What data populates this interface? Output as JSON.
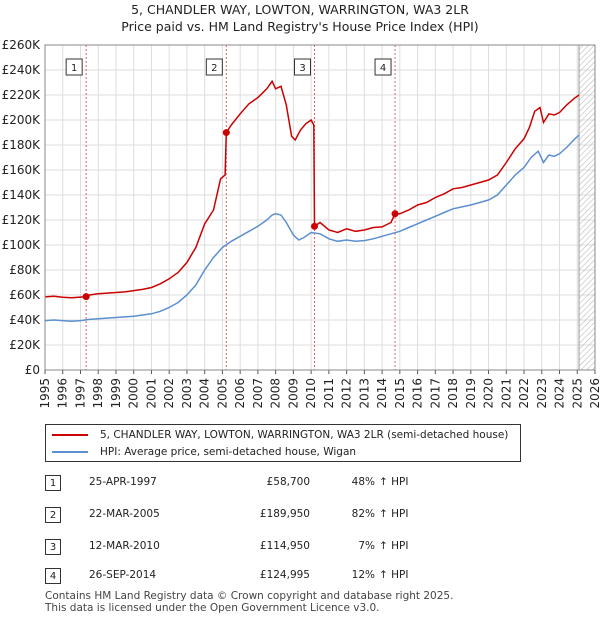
{
  "title": {
    "line1": "5, CHANDLER WAY, LOWTON, WARRINGTON, WA3 2LR",
    "line2": "Price paid vs. HM Land Registry's House Price Index (HPI)"
  },
  "chart_data": {
    "type": "line",
    "ylim": [
      0,
      260000
    ],
    "xlim": [
      1995,
      2026
    ],
    "y_ticks": [
      {
        "value": 0,
        "label": "£0"
      },
      {
        "value": 20000,
        "label": "£20K"
      },
      {
        "value": 40000,
        "label": "£40K"
      },
      {
        "value": 60000,
        "label": "£60K"
      },
      {
        "value": 80000,
        "label": "£80K"
      },
      {
        "value": 100000,
        "label": "£100K"
      },
      {
        "value": 120000,
        "label": "£120K"
      },
      {
        "value": 140000,
        "label": "£140K"
      },
      {
        "value": 160000,
        "label": "£160K"
      },
      {
        "value": 180000,
        "label": "£180K"
      },
      {
        "value": 200000,
        "label": "£200K"
      },
      {
        "value": 220000,
        "label": "£220K"
      },
      {
        "value": 240000,
        "label": "£240K"
      },
      {
        "value": 260000,
        "label": "£260K"
      }
    ],
    "x_ticks": [
      "1995",
      "1996",
      "1997",
      "1998",
      "1999",
      "2000",
      "2001",
      "2002",
      "2003",
      "2004",
      "2005",
      "2006",
      "2007",
      "2008",
      "2009",
      "2010",
      "2011",
      "2012",
      "2013",
      "2014",
      "2015",
      "2016",
      "2017",
      "2018",
      "2019",
      "2020",
      "2021",
      "2022",
      "2023",
      "2024",
      "2025",
      "2026"
    ],
    "forecast_start": 2025.1,
    "series": [
      {
        "name": "5, CHANDLER WAY, LOWTON, WARRINGTON, WA3 2LR (semi-detached house)",
        "color": "#cc0000",
        "points": [
          [
            1995.0,
            58500
          ],
          [
            1995.5,
            59000
          ],
          [
            1996.0,
            58200
          ],
          [
            1996.5,
            57800
          ],
          [
            1997.0,
            58300
          ],
          [
            1997.32,
            58700
          ],
          [
            1997.5,
            60000
          ],
          [
            1998.0,
            61000
          ],
          [
            1998.5,
            61500
          ],
          [
            1999.0,
            62000
          ],
          [
            1999.5,
            62500
          ],
          [
            2000.0,
            63500
          ],
          [
            2000.5,
            64500
          ],
          [
            2001.0,
            66000
          ],
          [
            2001.5,
            69000
          ],
          [
            2002.0,
            73000
          ],
          [
            2002.5,
            78000
          ],
          [
            2003.0,
            86000
          ],
          [
            2003.5,
            98000
          ],
          [
            2004.0,
            117000
          ],
          [
            2004.5,
            128000
          ],
          [
            2004.9,
            153000
          ],
          [
            2005.15,
            156000
          ],
          [
            2005.22,
            189950
          ],
          [
            2005.5,
            196000
          ],
          [
            2006.0,
            205000
          ],
          [
            2006.5,
            213000
          ],
          [
            2007.0,
            218000
          ],
          [
            2007.5,
            225000
          ],
          [
            2007.8,
            231000
          ],
          [
            2008.0,
            225000
          ],
          [
            2008.3,
            227000
          ],
          [
            2008.6,
            212000
          ],
          [
            2008.9,
            187000
          ],
          [
            2009.1,
            184000
          ],
          [
            2009.4,
            192000
          ],
          [
            2009.7,
            197000
          ],
          [
            2010.0,
            200000
          ],
          [
            2010.15,
            196000
          ],
          [
            2010.19,
            114950
          ],
          [
            2010.5,
            118000
          ],
          [
            2011.0,
            112000
          ],
          [
            2011.5,
            110000
          ],
          [
            2012.0,
            113000
          ],
          [
            2012.5,
            111000
          ],
          [
            2013.0,
            112000
          ],
          [
            2013.5,
            114000
          ],
          [
            2014.0,
            114500
          ],
          [
            2014.5,
            118000
          ],
          [
            2014.73,
            124995
          ],
          [
            2015.0,
            125000
          ],
          [
            2015.5,
            128000
          ],
          [
            2016.0,
            132000
          ],
          [
            2016.5,
            134000
          ],
          [
            2017.0,
            138000
          ],
          [
            2017.5,
            141000
          ],
          [
            2018.0,
            145000
          ],
          [
            2018.5,
            146000
          ],
          [
            2019.0,
            148000
          ],
          [
            2019.5,
            150000
          ],
          [
            2020.0,
            152000
          ],
          [
            2020.5,
            156000
          ],
          [
            2021.0,
            166000
          ],
          [
            2021.5,
            177000
          ],
          [
            2022.0,
            185000
          ],
          [
            2022.3,
            194000
          ],
          [
            2022.6,
            207000
          ],
          [
            2022.9,
            210000
          ],
          [
            2023.1,
            198000
          ],
          [
            2023.4,
            205000
          ],
          [
            2023.7,
            204000
          ],
          [
            2024.0,
            206000
          ],
          [
            2024.4,
            212000
          ],
          [
            2024.8,
            217000
          ],
          [
            2025.1,
            220000
          ]
        ]
      },
      {
        "name": "HPI: Average price, semi-detached house, Wigan",
        "color": "#5b8fd0",
        "points": [
          [
            1995.0,
            39500
          ],
          [
            1995.5,
            40000
          ],
          [
            1996.0,
            39500
          ],
          [
            1996.5,
            39000
          ],
          [
            1997.0,
            39500
          ],
          [
            1997.5,
            40500
          ],
          [
            1998.0,
            41000
          ],
          [
            1998.5,
            41500
          ],
          [
            1999.0,
            42000
          ],
          [
            1999.5,
            42500
          ],
          [
            2000.0,
            43000
          ],
          [
            2000.5,
            44000
          ],
          [
            2001.0,
            45000
          ],
          [
            2001.5,
            47000
          ],
          [
            2002.0,
            50000
          ],
          [
            2002.5,
            54000
          ],
          [
            2003.0,
            60000
          ],
          [
            2003.5,
            68000
          ],
          [
            2004.0,
            80000
          ],
          [
            2004.5,
            90000
          ],
          [
            2005.0,
            98000
          ],
          [
            2005.5,
            103000
          ],
          [
            2006.0,
            107000
          ],
          [
            2006.5,
            111000
          ],
          [
            2007.0,
            115000
          ],
          [
            2007.5,
            120000
          ],
          [
            2007.8,
            124000
          ],
          [
            2008.0,
            125000
          ],
          [
            2008.3,
            124000
          ],
          [
            2008.6,
            118000
          ],
          [
            2009.0,
            108000
          ],
          [
            2009.3,
            104000
          ],
          [
            2009.6,
            106000
          ],
          [
            2010.0,
            110000
          ],
          [
            2010.5,
            109000
          ],
          [
            2011.0,
            105000
          ],
          [
            2011.5,
            103000
          ],
          [
            2012.0,
            104000
          ],
          [
            2012.5,
            103000
          ],
          [
            2013.0,
            103500
          ],
          [
            2013.5,
            105000
          ],
          [
            2014.0,
            107000
          ],
          [
            2014.5,
            109000
          ],
          [
            2015.0,
            111000
          ],
          [
            2015.5,
            114000
          ],
          [
            2016.0,
            117000
          ],
          [
            2016.5,
            120000
          ],
          [
            2017.0,
            123000
          ],
          [
            2017.5,
            126000
          ],
          [
            2018.0,
            129000
          ],
          [
            2018.5,
            130500
          ],
          [
            2019.0,
            132000
          ],
          [
            2019.5,
            134000
          ],
          [
            2020.0,
            136000
          ],
          [
            2020.5,
            140000
          ],
          [
            2021.0,
            148000
          ],
          [
            2021.5,
            156000
          ],
          [
            2022.0,
            162000
          ],
          [
            2022.4,
            170000
          ],
          [
            2022.8,
            175000
          ],
          [
            2023.1,
            166000
          ],
          [
            2023.4,
            172000
          ],
          [
            2023.7,
            171000
          ],
          [
            2024.0,
            173000
          ],
          [
            2024.4,
            178000
          ],
          [
            2024.8,
            184000
          ],
          [
            2025.1,
            188000
          ]
        ]
      }
    ],
    "sales": [
      {
        "label": "1",
        "x": 1997.32,
        "price": 58700
      },
      {
        "label": "2",
        "x": 2005.22,
        "price": 189950
      },
      {
        "label": "3",
        "x": 2010.19,
        "price": 114950
      },
      {
        "label": "4",
        "x": 2014.73,
        "price": 124995
      }
    ]
  },
  "legend": {
    "property_label": "5, CHANDLER WAY, LOWTON, WARRINGTON, WA3 2LR (semi-detached house)",
    "hpi_label": "HPI: Average price, semi-detached house, Wigan"
  },
  "transactions": [
    {
      "num": "1",
      "date": "25-APR-1997",
      "price": "£58,700",
      "hpi_pct": "48%",
      "hpi_dir": "↑ HPI"
    },
    {
      "num": "2",
      "date": "22-MAR-2005",
      "price": "£189,950",
      "hpi_pct": "82%",
      "hpi_dir": "↑ HPI"
    },
    {
      "num": "3",
      "date": "12-MAR-2010",
      "price": "£114,950",
      "hpi_pct": "7%",
      "hpi_dir": "↑ HPI"
    },
    {
      "num": "4",
      "date": "26-SEP-2014",
      "price": "£124,995",
      "hpi_pct": "12%",
      "hpi_dir": "↑ HPI"
    }
  ],
  "footer": {
    "line1": "Contains HM Land Registry data © Crown copyright and database right 2025.",
    "line2": "This data is licensed under the Open Government Licence v3.0."
  }
}
